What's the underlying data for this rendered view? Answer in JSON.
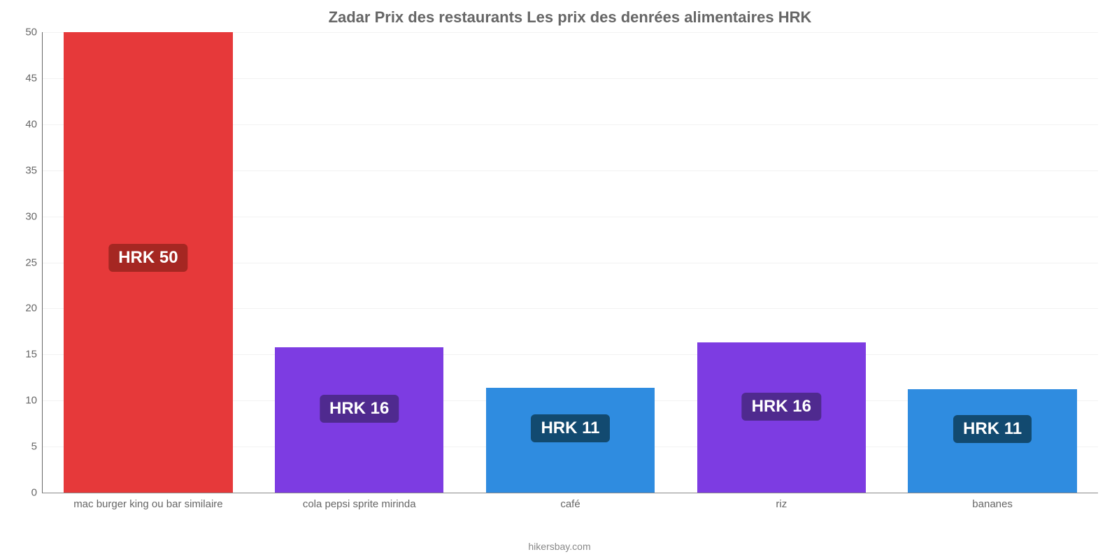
{
  "chart": {
    "type": "bar",
    "title": "Zadar Prix des restaurants Les prix des denrées alimentaires HRK",
    "title_color": "#666666",
    "title_fontsize": 22,
    "background_color": "#ffffff",
    "grid_color": "#f2f2f2",
    "axis_color": "#666666",
    "ylim": [
      0,
      50
    ],
    "ytick_step": 5,
    "yticks": [
      0,
      5,
      10,
      15,
      20,
      25,
      30,
      35,
      40,
      45,
      50
    ],
    "bar_width": 0.8,
    "tick_label_color": "#666666",
    "tick_label_fontsize": 15,
    "value_label_fontsize": 24,
    "value_label_text_color": "#ffffff",
    "badge_colors": {
      "red": "#a52722",
      "purple": "#4f2a8f",
      "blue": "#124a70"
    },
    "categories": [
      {
        "label": "mac burger king ou bar similaire",
        "value": 50,
        "value_label": "HRK 50",
        "bar_color": "#e6393a",
        "badge_color": "#a52722"
      },
      {
        "label": "cola pepsi sprite mirinda",
        "value": 15.8,
        "value_label": "HRK 16",
        "bar_color": "#7d3ce2",
        "badge_color": "#4f2a8f"
      },
      {
        "label": "café",
        "value": 11.4,
        "value_label": "HRK 11",
        "bar_color": "#2f8ce0",
        "badge_color": "#124a70"
      },
      {
        "label": "riz",
        "value": 16.3,
        "value_label": "HRK 16",
        "bar_color": "#7d3ce2",
        "badge_color": "#4f2a8f"
      },
      {
        "label": "bananes",
        "value": 11.2,
        "value_label": "HRK 11",
        "bar_color": "#2f8ce0",
        "badge_color": "#124a70"
      }
    ],
    "source_label": "hikersbay.com",
    "source_color": "#888888",
    "source_fontsize": 14
  }
}
